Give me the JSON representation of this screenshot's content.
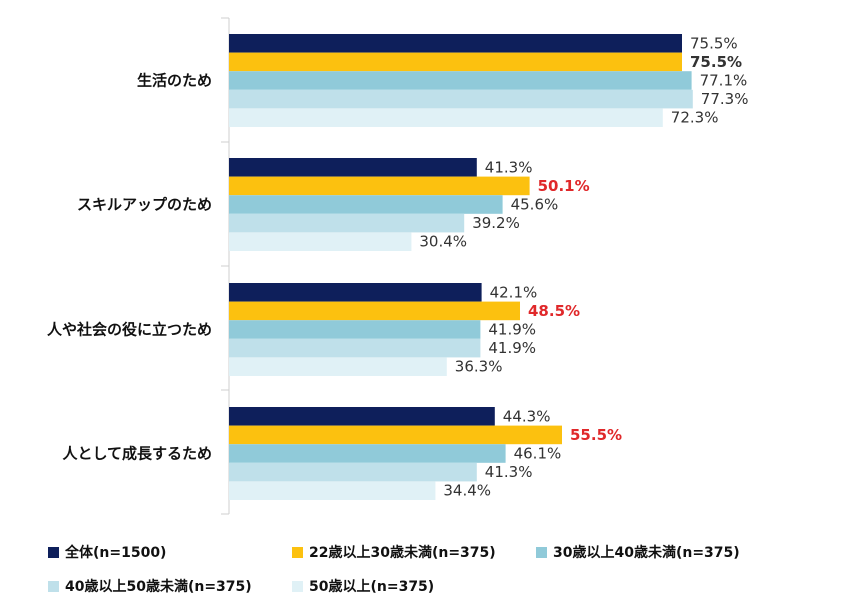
{
  "chart_data": {
    "type": "bar",
    "orientation": "horizontal",
    "title": "",
    "xlabel": "",
    "ylabel": "",
    "xlim": [
      0,
      100
    ],
    "grid": false,
    "legend_position": "bottom",
    "categories": [
      "生活のため",
      "スキルアップのため",
      "人や社会の役に立つため",
      "人として成長するため"
    ],
    "series": [
      {
        "name": "全体(n=1500)",
        "color": "#0e1f5b",
        "values": [
          75.5,
          41.3,
          42.1,
          44.3
        ]
      },
      {
        "name": "22歳以上30歳未満(n=375)",
        "color": "#fcc10f",
        "values": [
          75.5,
          50.1,
          48.5,
          55.5
        ]
      },
      {
        "name": "30歳以上40歳未満(n=375)",
        "color": "#90cad9",
        "values": [
          77.1,
          45.6,
          41.9,
          46.1
        ]
      },
      {
        "name": "40歳以上50歳未満(n=375)",
        "color": "#bfe0ea",
        "values": [
          77.3,
          39.2,
          41.9,
          41.3
        ]
      },
      {
        "name": "50歳以上(n=375)",
        "color": "#e0f1f6",
        "values": [
          72.3,
          30.4,
          36.3,
          34.4
        ]
      }
    ],
    "data_labels": [
      [
        "75.5%",
        "41.3%",
        "42.1%",
        "44.3%"
      ],
      [
        "75.5%",
        "50.1%",
        "48.5%",
        "55.5%"
      ],
      [
        "77.1%",
        "45.6%",
        "41.9%",
        "46.1%"
      ],
      [
        "77.3%",
        "39.2%",
        "41.9%",
        "41.3%"
      ],
      [
        "72.3%",
        "30.4%",
        "36.3%",
        "34.4%"
      ]
    ],
    "highlight_color": "#e0282a",
    "highlighted_labels": [
      [
        1,
        1
      ],
      [
        1,
        2
      ],
      [
        1,
        3
      ]
    ],
    "bold_labels": [
      [
        1,
        0
      ],
      [
        1,
        1
      ],
      [
        1,
        2
      ],
      [
        1,
        3
      ]
    ]
  }
}
